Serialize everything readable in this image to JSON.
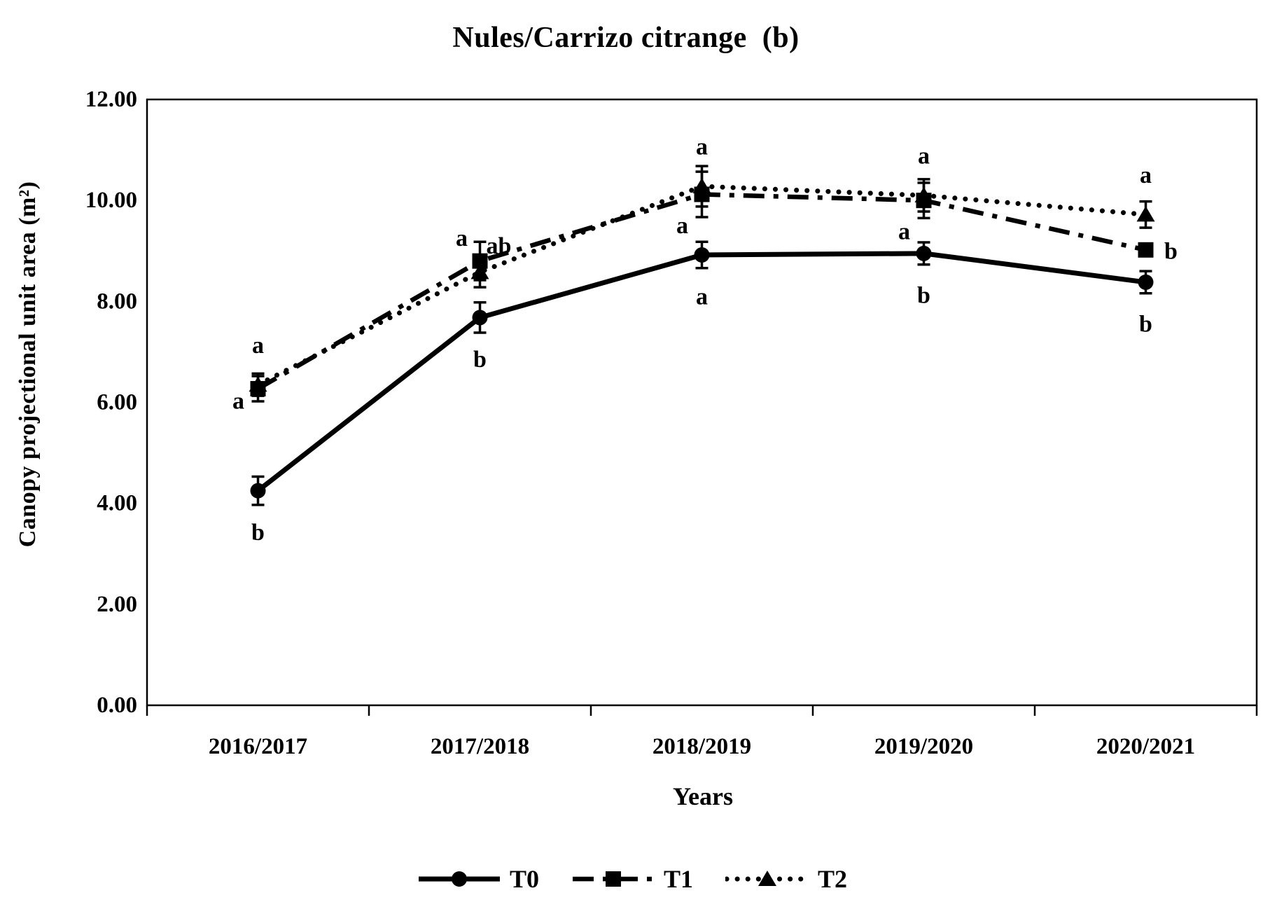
{
  "colors": {
    "ink": "#000000",
    "background": "#ffffff"
  },
  "chart_data": {
    "type": "line",
    "title": "Nules/Carrizo citrange  (b)",
    "xlabel": "Years",
    "ylabel": "Canopy projectional unit area (m²)",
    "categories": [
      "2016/2017",
      "2017/2018",
      "2018/2019",
      "2019/2020",
      "2020/2021"
    ],
    "ylim": [
      0,
      12
    ],
    "yticks": [
      0,
      2,
      4,
      6,
      8,
      10,
      12
    ],
    "ytick_labels": [
      "0.00",
      "2.00",
      "4.00",
      "6.00",
      "8.00",
      "10.00",
      "12.00"
    ],
    "grid": false,
    "legend_position": "bottom",
    "error_bars": true,
    "series": [
      {
        "name": "T0",
        "marker": "circle",
        "line": "solid",
        "values": [
          4.25,
          7.68,
          8.92,
          8.95,
          8.38
        ],
        "errors": [
          0.28,
          0.3,
          0.26,
          0.22,
          0.22
        ],
        "letters": [
          "b",
          "b",
          "a",
          "b",
          "b"
        ],
        "letter_placements": [
          "below",
          "below",
          "below",
          "below",
          "below"
        ]
      },
      {
        "name": "T1",
        "marker": "square",
        "line": "dashdot",
        "values": [
          6.27,
          8.8,
          10.12,
          10.0,
          9.02
        ],
        "errors": [
          0.25,
          0.38,
          0.45,
          0.35,
          0.1
        ],
        "letters": [
          "a",
          "a",
          "a",
          "a",
          "b"
        ],
        "letter_placements": [
          "left",
          "above-left",
          "below-left",
          "below-left",
          "right"
        ]
      },
      {
        "name": "T2",
        "marker": "triangle",
        "line": "dotted",
        "values": [
          6.35,
          8.58,
          10.28,
          10.1,
          9.72
        ],
        "errors": [
          0.22,
          0.3,
          0.4,
          0.32,
          0.26
        ],
        "letters": [
          "a",
          "ab",
          "a",
          "a",
          "a"
        ],
        "letter_placements": [
          "above",
          "above-right",
          "above",
          "above",
          "above"
        ]
      }
    ]
  }
}
